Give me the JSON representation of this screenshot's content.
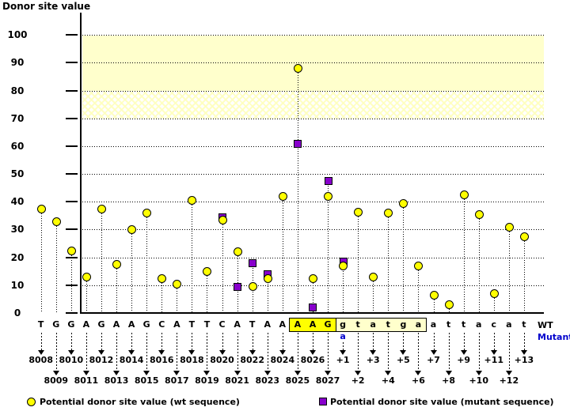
{
  "title": "Donor site value",
  "labels": {
    "wt": "WT",
    "mutant": "Mutant"
  },
  "legend": {
    "wt_label": "Potential donor site value (wt sequence)",
    "wt_icon": "yellow-circle",
    "mutant_label": "Potential donor site value (mutant sequence)",
    "mutant_icon": "purple-square"
  },
  "colors": {
    "wt_marker": "#ffff00",
    "mutant_marker": "#8800cc",
    "band": "#ffffcc",
    "highlight_exon": "#ffff00",
    "highlight_intron": "#ffffcc",
    "mutant_text": "#0000cc"
  },
  "chart_data": {
    "type": "scatter",
    "subtype": "stem",
    "title": "Donor site value",
    "xlabel": "",
    "ylabel": "Donor site value",
    "ylim": [
      0,
      107
    ],
    "yticks": [
      0,
      10,
      20,
      30,
      40,
      50,
      60,
      70,
      80,
      90,
      100
    ],
    "grid": "dotted-horizontal",
    "legend_position": "bottom",
    "bands": [
      {
        "from": 80,
        "to": 100,
        "style": "solid",
        "color": "#ffffcc"
      },
      {
        "from": 70,
        "to": 80,
        "style": "crosshatch",
        "color": "#ffffcc"
      }
    ],
    "series": [
      {
        "name": "Potential donor site value (wt sequence)",
        "marker": "circle",
        "color": "#ffff00"
      },
      {
        "name": "Potential donor site value (mutant sequence)",
        "marker": "square",
        "color": "#8800cc"
      }
    ],
    "points": [
      {
        "pos": "8008",
        "base": "T",
        "wt": 37.5,
        "mut": null,
        "hl": null
      },
      {
        "pos": "8009",
        "base": "G",
        "wt": 33,
        "mut": null,
        "hl": null
      },
      {
        "pos": "8010",
        "base": "G",
        "wt": 22.5,
        "mut": null,
        "hl": null
      },
      {
        "pos": "8011",
        "base": "A",
        "wt": 13,
        "mut": null,
        "hl": null
      },
      {
        "pos": "8012",
        "base": "G",
        "wt": 37.5,
        "mut": null,
        "hl": null
      },
      {
        "pos": "8013",
        "base": "A",
        "wt": 17.5,
        "mut": null,
        "hl": null
      },
      {
        "pos": "8014",
        "base": "A",
        "wt": 30,
        "mut": null,
        "hl": null
      },
      {
        "pos": "8015",
        "base": "G",
        "wt": 36,
        "mut": null,
        "hl": null
      },
      {
        "pos": "8016",
        "base": "C",
        "wt": 12.5,
        "mut": null,
        "hl": null
      },
      {
        "pos": "8017",
        "base": "A",
        "wt": 10.5,
        "mut": null,
        "hl": null
      },
      {
        "pos": "8018",
        "base": "T",
        "wt": 40.5,
        "mut": null,
        "hl": null
      },
      {
        "pos": "8019",
        "base": "T",
        "wt": 15,
        "mut": null,
        "hl": null
      },
      {
        "pos": "8020",
        "base": "C",
        "wt": 33.5,
        "mut": 34.5,
        "hl": null
      },
      {
        "pos": "8021",
        "base": "A",
        "wt": 22,
        "mut": 9.5,
        "hl": null
      },
      {
        "pos": "8022",
        "base": "T",
        "wt": 9.5,
        "mut": 18,
        "hl": null
      },
      {
        "pos": "8023",
        "base": "A",
        "wt": 12.5,
        "mut": 14,
        "hl": null
      },
      {
        "pos": "8024",
        "base": "A",
        "wt": 42,
        "mut": null,
        "hl": null
      },
      {
        "pos": "8025",
        "base": "A",
        "wt": 88,
        "mut": 61,
        "hl": "exon"
      },
      {
        "pos": "8026",
        "base": "A",
        "wt": 12.5,
        "mut": 2,
        "hl": "exon"
      },
      {
        "pos": "8027",
        "base": "G",
        "wt": 42,
        "mut": 47.5,
        "hl": "exon"
      },
      {
        "pos": "+1",
        "base": "g",
        "wt": 17,
        "mut": 18.5,
        "hl": "intron",
        "mutant_base": "a"
      },
      {
        "pos": "+2",
        "base": "t",
        "wt": 36.5,
        "mut": null,
        "hl": "intron"
      },
      {
        "pos": "+3",
        "base": "a",
        "wt": 13,
        "mut": null,
        "hl": "intron"
      },
      {
        "pos": "+4",
        "base": "t",
        "wt": 36,
        "mut": null,
        "hl": "intron"
      },
      {
        "pos": "+5",
        "base": "g",
        "wt": 39.5,
        "mut": null,
        "hl": "intron"
      },
      {
        "pos": "+6",
        "base": "a",
        "wt": 17,
        "mut": null,
        "hl": "intron"
      },
      {
        "pos": "+7",
        "base": "a",
        "wt": 6.5,
        "mut": null,
        "hl": null
      },
      {
        "pos": "+8",
        "base": "t",
        "wt": 3,
        "mut": null,
        "hl": null
      },
      {
        "pos": "+9",
        "base": "t",
        "wt": 42.5,
        "mut": null,
        "hl": null
      },
      {
        "pos": "+10",
        "base": "a",
        "wt": 35.5,
        "mut": null,
        "hl": null
      },
      {
        "pos": "+11",
        "base": "c",
        "wt": 7,
        "mut": null,
        "hl": null
      },
      {
        "pos": "+12",
        "base": "a",
        "wt": 31,
        "mut": null,
        "hl": null
      },
      {
        "pos": "+13",
        "base": "t",
        "wt": 27.5,
        "mut": null,
        "hl": null
      }
    ]
  }
}
